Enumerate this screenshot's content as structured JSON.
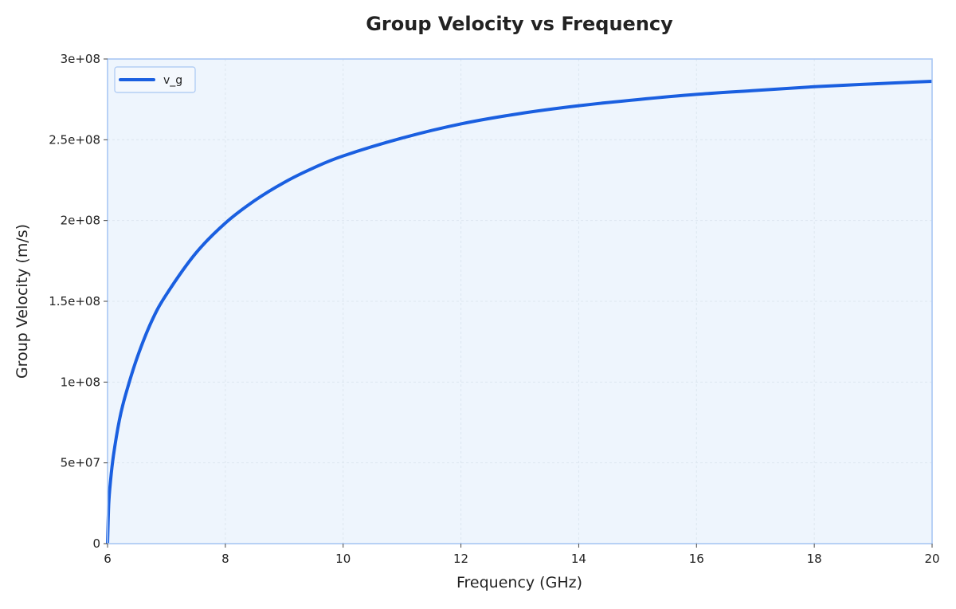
{
  "chart_data": {
    "type": "line",
    "title": "Group Velocity vs Frequency",
    "xlabel": "Frequency (GHz)",
    "ylabel": "Group Velocity (m/s)",
    "xlim": [
      6,
      20
    ],
    "ylim": [
      0,
      300000000
    ],
    "x_ticks": [
      6,
      8,
      10,
      12,
      14,
      16,
      18,
      20
    ],
    "x_tick_labels": [
      "6",
      "8",
      "10",
      "12",
      "14",
      "16",
      "18",
      "20"
    ],
    "y_ticks": [
      0,
      50000000,
      100000000,
      150000000,
      200000000,
      250000000,
      300000000
    ],
    "y_tick_labels": [
      "0",
      "5e+07",
      "1e+08",
      "1.5e+08",
      "2e+08",
      "2.5e+08",
      "3e+08"
    ],
    "grid": true,
    "legend_position": "top-left",
    "series": [
      {
        "name": "v_g",
        "color": "#1a5fe0",
        "x": [
          6.0,
          6.02,
          6.05,
          6.1,
          6.2,
          6.3,
          6.5,
          6.75,
          7.0,
          7.5,
          8.0,
          8.5,
          9.0,
          9.5,
          10.0,
          11.0,
          12.0,
          13.0,
          14.0,
          15.0,
          16.0,
          17.0,
          18.0,
          19.0,
          20.0
        ],
        "y": [
          0,
          24450000,
          38630000,
          54500000,
          76310000,
          91360000,
          114890000,
          137790000,
          154300000,
          179880000,
          198430000,
          212410000,
          223600000,
          232640000,
          240000000,
          251050000,
          259810000,
          266210000,
          271060000,
          274860000,
          278100000,
          280510000,
          282840000,
          284590000,
          286200000
        ]
      }
    ]
  },
  "colors": {
    "plot_background": "#eef5fd",
    "plot_border": "#a9c7f3",
    "grid": "#dde6f0",
    "line": "#1a5fe0"
  }
}
